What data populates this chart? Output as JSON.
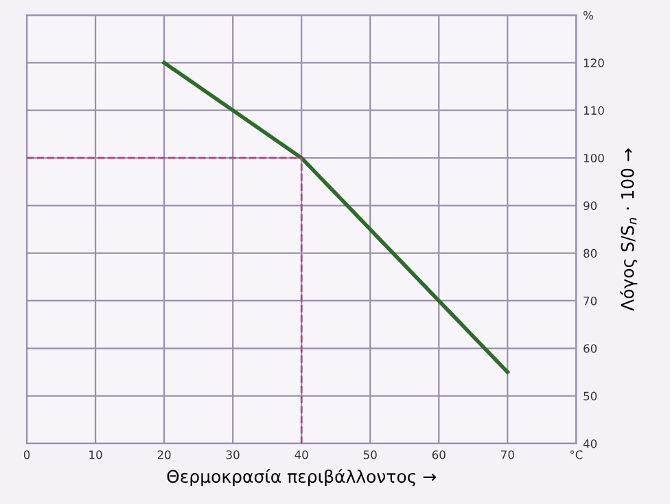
{
  "chart_data": {
    "type": "line",
    "xlabel": "Θερμοκρασία περιβάλλοντος →",
    "ylabel": "Λόγος S/S$_{n}$ · 100 →",
    "x": [
      20,
      40,
      60,
      70
    ],
    "series": [
      {
        "color": "#2f6b2a",
        "values": [
          120,
          100,
          70,
          55
        ]
      }
    ],
    "xlim": [
      0,
      80
    ],
    "ylim": [
      40,
      130
    ],
    "xticks": [
      0,
      10,
      20,
      30,
      40,
      50,
      60,
      70,
      {
        "value": 80,
        "label": "°C"
      }
    ],
    "yticks": [
      40,
      50,
      60,
      70,
      80,
      90,
      100,
      110,
      120,
      {
        "value": 130,
        "label": "%"
      }
    ],
    "grid": true,
    "marker": "none",
    "line_style": "solid",
    "ref_lines": [
      {
        "axis": "y",
        "value": 100,
        "color": "#b04a7a",
        "line_style": "dashed"
      },
      {
        "axis": "x",
        "value": 40,
        "color": "#b04a7a",
        "line_style": "dashed"
      }
    ]
  }
}
